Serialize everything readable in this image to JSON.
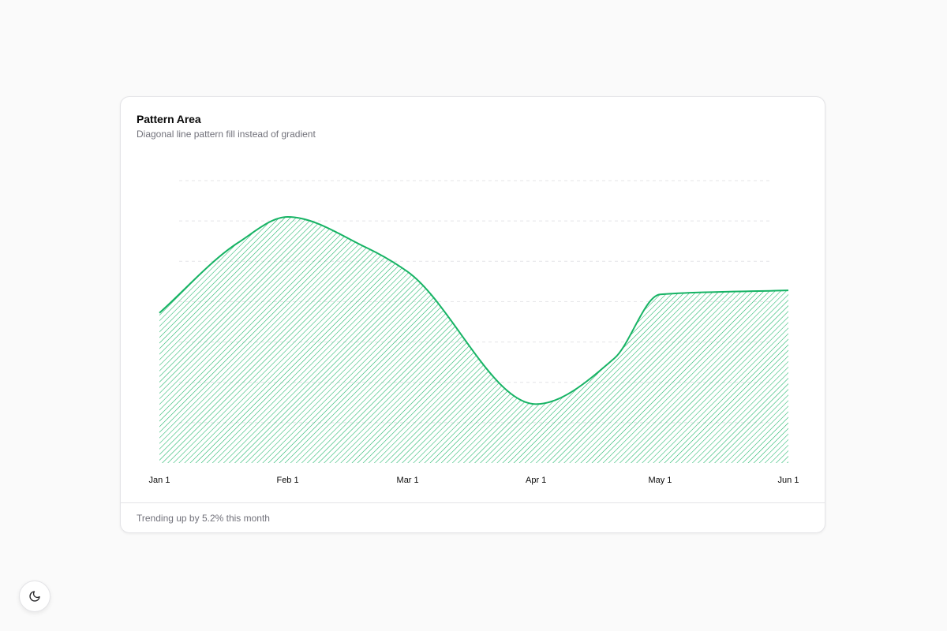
{
  "card": {
    "title": "Pattern Area",
    "subtitle": "Diagonal line pattern fill instead of gradient",
    "footer": "Trending up by 5.2% this month"
  },
  "theme_toggle": {
    "icon": "moon-icon"
  },
  "colors": {
    "series": "#16b364",
    "grid": "#e4e4e7",
    "background": "#fafafa"
  },
  "chart_data": {
    "type": "area",
    "fill": "diagonal-line-pattern",
    "curve": "smooth",
    "categories": [
      "Jan 1",
      "Feb 1",
      "Mar 1",
      "Apr 1",
      "May 1",
      "Jun 1"
    ],
    "x": [
      "2024-01-01",
      "2024-01-20",
      "2024-02-01",
      "2024-02-20",
      "2024-03-01",
      "2024-04-01",
      "2024-04-20",
      "2024-05-01",
      "2024-06-01"
    ],
    "series": [
      {
        "values": [
          186,
          273,
          305,
          267,
          237,
          73,
          130,
          209,
          214
        ]
      }
    ],
    "ylim": [
      0,
      350
    ],
    "grid": true,
    "legend": "none"
  }
}
